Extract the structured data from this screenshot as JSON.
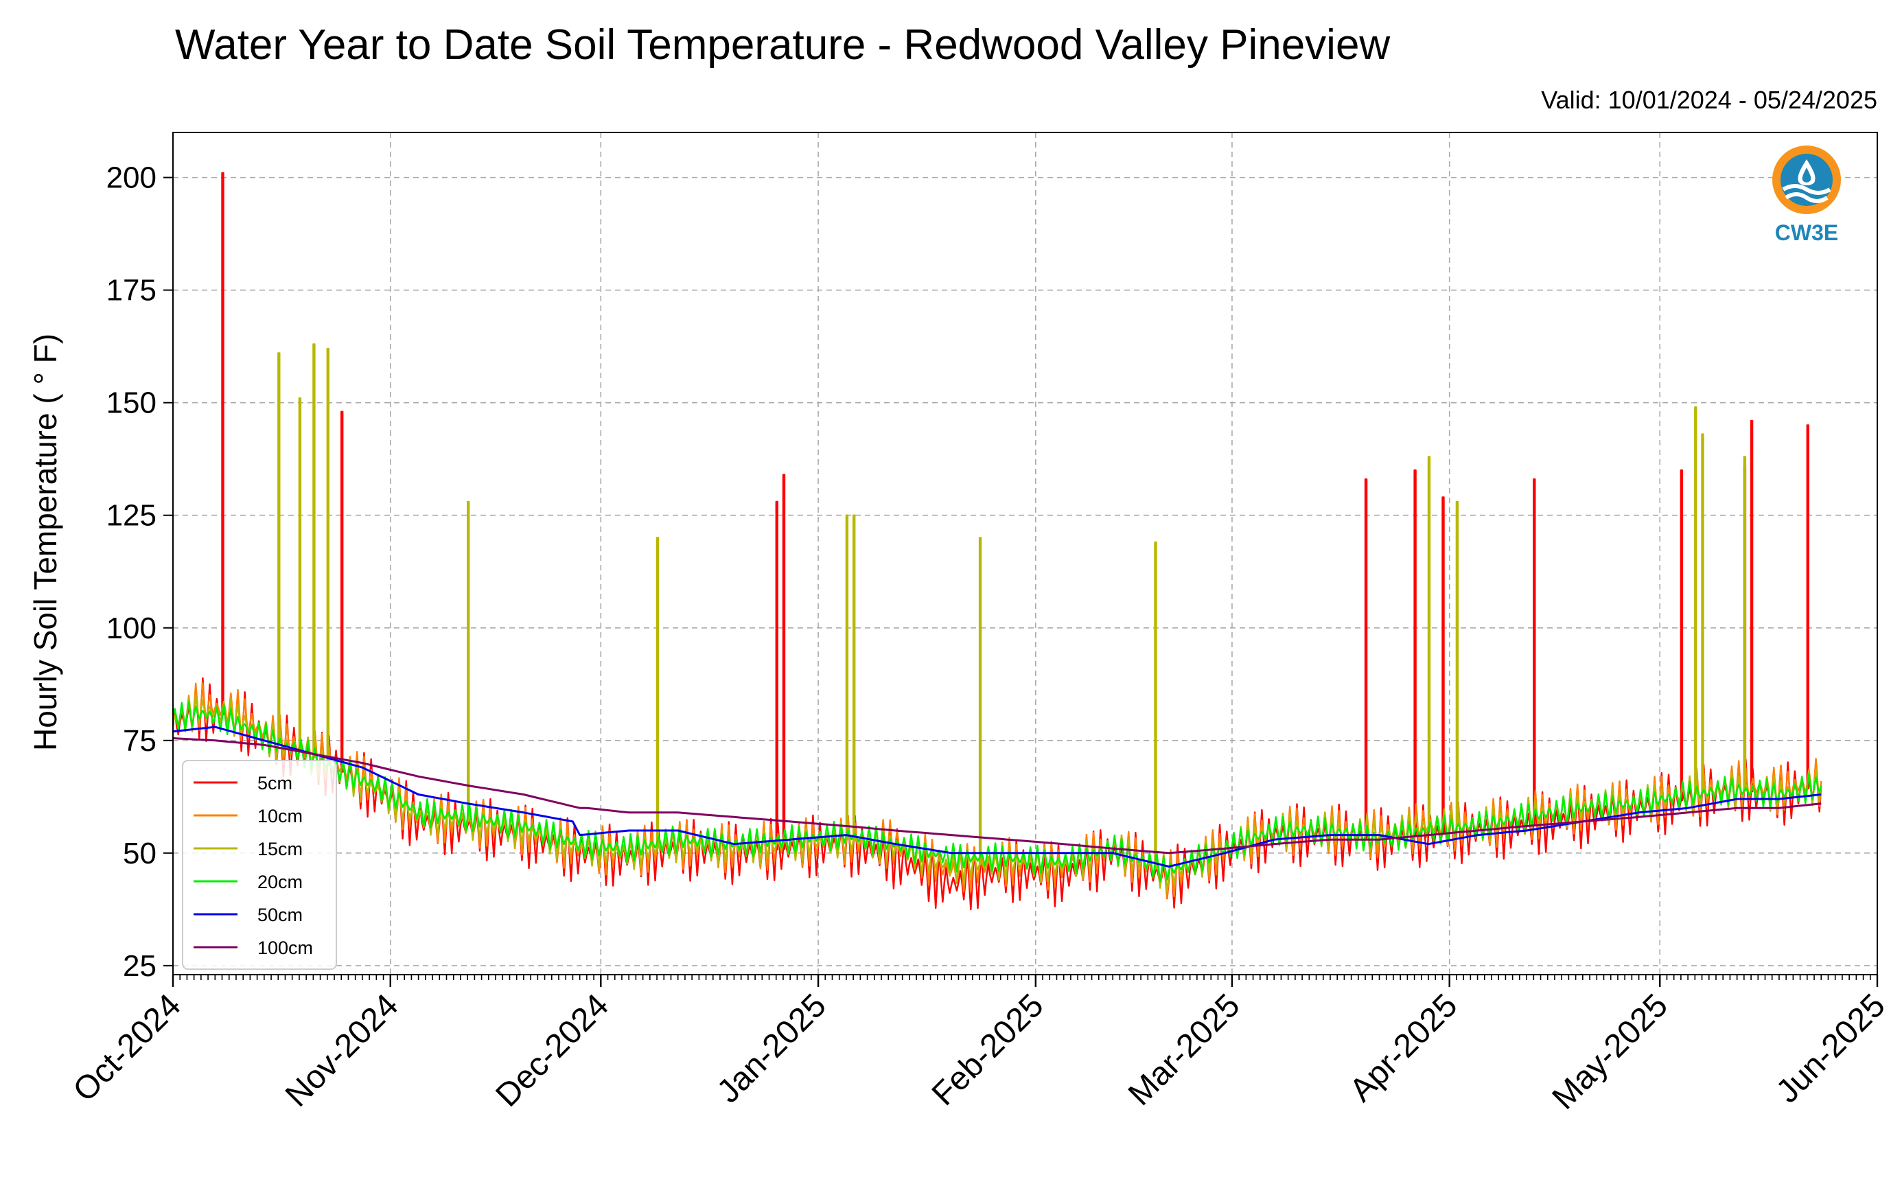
{
  "chart_data": {
    "type": "line",
    "title": "Water Year to Date Soil Temperature - Redwood Valley Pineview",
    "subtitle": "Valid: 10/01/2024 - 05/24/2025",
    "xlabel": "",
    "ylabel": "Hourly Soil Temperature ( ° F)",
    "xlim": [
      "2024-10-01",
      "2025-06-01"
    ],
    "ylim": [
      23,
      210
    ],
    "yticks": [
      25,
      50,
      75,
      100,
      125,
      150,
      175,
      200
    ],
    "ytick_labels": [
      "25",
      "50",
      "75",
      "100",
      "125",
      "150",
      "175",
      "200"
    ],
    "xticks": [
      "2024-10-01",
      "2024-11-01",
      "2024-12-01",
      "2025-01-01",
      "2025-02-01",
      "2025-03-01",
      "2025-04-01",
      "2025-05-01",
      "2025-06-01"
    ],
    "xtick_labels": [
      "Oct-2024",
      "Nov-2024",
      "Dec-2024",
      "Jan-2025",
      "Feb-2025",
      "Mar-2025",
      "Apr-2025",
      "May-2025",
      "Jun-2025"
    ],
    "grid": true,
    "legend_position": "lower-left",
    "series": [
      {
        "name": "5cm",
        "color": "#ff0000",
        "x": [
          "2024-10-01",
          "2024-10-05",
          "2024-10-10",
          "2024-10-15",
          "2024-10-20",
          "2024-10-25",
          "2024-10-30",
          "2024-11-05",
          "2024-11-12",
          "2024-11-20",
          "2024-11-28",
          "2024-12-05",
          "2024-12-12",
          "2024-12-20",
          "2024-12-28",
          "2025-01-05",
          "2025-01-12",
          "2025-01-20",
          "2025-01-28",
          "2025-02-05",
          "2025-02-12",
          "2025-02-20",
          "2025-02-28",
          "2025-03-07",
          "2025-03-15",
          "2025-03-22",
          "2025-03-29",
          "2025-04-05",
          "2025-04-12",
          "2025-04-20",
          "2025-04-28",
          "2025-05-05",
          "2025-05-12",
          "2025-05-18",
          "2025-05-24"
        ],
        "y": [
          78,
          82,
          80,
          75,
          72,
          68,
          64,
          57,
          56,
          54,
          50,
          49,
          51,
          50,
          51,
          52,
          49,
          43,
          46,
          45,
          50,
          44,
          50,
          54,
          54,
          53,
          54,
          55,
          56,
          58,
          60,
          62,
          64,
          63,
          65
        ],
        "spikes": [
          {
            "x": "2024-10-08",
            "y": 201
          },
          {
            "x": "2024-10-25",
            "y": 148
          },
          {
            "x": "2024-12-26",
            "y": 128
          },
          {
            "x": "2024-12-27",
            "y": 134
          },
          {
            "x": "2025-03-20",
            "y": 133
          },
          {
            "x": "2025-03-27",
            "y": 135
          },
          {
            "x": "2025-03-31",
            "y": 129
          },
          {
            "x": "2025-04-13",
            "y": 133
          },
          {
            "x": "2025-05-04",
            "y": 135
          },
          {
            "x": "2025-05-13",
            "y": 136
          },
          {
            "x": "2025-05-14",
            "y": 146
          },
          {
            "x": "2025-05-22",
            "y": 145
          }
        ]
      },
      {
        "name": "10cm",
        "color": "#ff8000",
        "x": [
          "2024-10-01",
          "2024-10-05",
          "2024-10-10",
          "2024-10-15",
          "2024-10-20",
          "2024-10-25",
          "2024-10-30",
          "2024-11-05",
          "2024-11-12",
          "2024-11-20",
          "2024-11-28",
          "2024-12-05",
          "2024-12-12",
          "2024-12-20",
          "2024-12-28",
          "2025-01-05",
          "2025-01-12",
          "2025-01-20",
          "2025-01-28",
          "2025-02-05",
          "2025-02-12",
          "2025-02-20",
          "2025-02-28",
          "2025-03-07",
          "2025-03-15",
          "2025-03-22",
          "2025-03-29",
          "2025-04-05",
          "2025-04-12",
          "2025-04-20",
          "2025-04-28",
          "2025-05-05",
          "2025-05-12",
          "2025-05-18",
          "2025-05-24"
        ],
        "y": [
          79,
          83,
          81,
          76,
          73,
          69,
          65,
          58,
          57,
          55,
          51,
          50,
          52,
          51,
          52,
          53,
          52,
          46,
          48,
          47,
          51,
          45,
          51,
          55,
          55,
          54,
          56,
          56,
          58,
          60,
          61,
          63,
          65,
          64,
          66
        ],
        "spikes": []
      },
      {
        "name": "15cm",
        "color": "#b8b800",
        "x": [
          "2024-10-01",
          "2024-10-05",
          "2024-10-10",
          "2024-10-15",
          "2024-10-20",
          "2024-10-25",
          "2024-10-30",
          "2024-11-05",
          "2024-11-12",
          "2024-11-20",
          "2024-11-28",
          "2024-12-05",
          "2024-12-12",
          "2024-12-20",
          "2024-12-28",
          "2025-01-05",
          "2025-01-12",
          "2025-01-20",
          "2025-01-28",
          "2025-02-05",
          "2025-02-12",
          "2025-02-20",
          "2025-02-28",
          "2025-03-07",
          "2025-03-15",
          "2025-03-22",
          "2025-03-29",
          "2025-04-05",
          "2025-04-12",
          "2025-04-20",
          "2025-04-28",
          "2025-05-05",
          "2025-05-12",
          "2025-05-18",
          "2025-05-24"
        ],
        "y": [
          79,
          82,
          80,
          75,
          72,
          68,
          64,
          58,
          57,
          55,
          51,
          50,
          52,
          51,
          52,
          53,
          51,
          47,
          48,
          47,
          51,
          45,
          51,
          55,
          55,
          54,
          56,
          56,
          58,
          60,
          61,
          63,
          64,
          63,
          65
        ],
        "spikes": [
          {
            "x": "2024-10-16",
            "y": 161
          },
          {
            "x": "2024-10-19",
            "y": 151
          },
          {
            "x": "2024-10-21",
            "y": 163
          },
          {
            "x": "2024-10-23",
            "y": 162
          },
          {
            "x": "2024-11-12",
            "y": 128
          },
          {
            "x": "2024-12-09",
            "y": 120
          },
          {
            "x": "2025-01-05",
            "y": 125
          },
          {
            "x": "2025-01-06",
            "y": 125
          },
          {
            "x": "2025-01-24",
            "y": 120
          },
          {
            "x": "2025-02-18",
            "y": 119
          },
          {
            "x": "2025-03-29",
            "y": 138
          },
          {
            "x": "2025-04-02",
            "y": 128
          },
          {
            "x": "2025-05-06",
            "y": 149
          },
          {
            "x": "2025-05-07",
            "y": 143
          },
          {
            "x": "2025-05-13",
            "y": 138
          }
        ]
      },
      {
        "name": "20cm",
        "color": "#00ee00",
        "x": [
          "2024-10-01",
          "2024-10-05",
          "2024-10-10",
          "2024-10-15",
          "2024-10-20",
          "2024-10-25",
          "2024-10-30",
          "2024-11-05",
          "2024-11-12",
          "2024-11-20",
          "2024-11-28",
          "2024-12-05",
          "2024-12-12",
          "2024-12-20",
          "2024-12-28",
          "2025-01-05",
          "2025-01-12",
          "2025-01-20",
          "2025-01-28",
          "2025-02-05",
          "2025-02-12",
          "2025-02-20",
          "2025-02-28",
          "2025-03-07",
          "2025-03-15",
          "2025-03-22",
          "2025-03-29",
          "2025-04-05",
          "2025-04-12",
          "2025-04-20",
          "2025-04-28",
          "2025-05-05",
          "2025-05-12",
          "2025-05-18",
          "2025-05-24"
        ],
        "y": [
          80,
          81,
          79,
          75,
          72,
          68,
          65,
          59,
          58,
          56,
          52,
          51,
          53,
          52,
          53,
          54,
          52,
          49,
          49,
          48,
          51,
          46,
          51,
          55,
          55,
          53,
          55,
          56,
          58,
          60,
          61,
          63,
          64,
          63,
          65
        ],
        "spikes": []
      },
      {
        "name": "50cm",
        "color": "#0000ee",
        "x": [
          "2024-10-01",
          "2024-10-07",
          "2024-10-14",
          "2024-10-21",
          "2024-10-28",
          "2024-11-05",
          "2024-11-12",
          "2024-11-20",
          "2024-11-27",
          "2024-11-28",
          "2024-12-05",
          "2024-12-12",
          "2024-12-20",
          "2024-12-28",
          "2025-01-05",
          "2025-01-12",
          "2025-01-20",
          "2025-01-28",
          "2025-02-05",
          "2025-02-12",
          "2025-02-20",
          "2025-02-28",
          "2025-03-07",
          "2025-03-15",
          "2025-03-22",
          "2025-03-29",
          "2025-04-05",
          "2025-04-12",
          "2025-04-20",
          "2025-04-28",
          "2025-05-05",
          "2025-05-12",
          "2025-05-18",
          "2025-05-24"
        ],
        "y": [
          77,
          78,
          75,
          72,
          69,
          63,
          61,
          59,
          57,
          54,
          55,
          55,
          52,
          53,
          54,
          52,
          50,
          50,
          50,
          50,
          47,
          50,
          53,
          54,
          54,
          52,
          54,
          55,
          57,
          59,
          60,
          62,
          62,
          63
        ]
      },
      {
        "name": "100cm",
        "color": "#800060",
        "x": [
          "2024-10-01",
          "2024-10-07",
          "2024-10-14",
          "2024-10-21",
          "2024-10-28",
          "2024-11-05",
          "2024-11-12",
          "2024-11-20",
          "2024-11-28",
          "2024-11-29",
          "2024-12-05",
          "2024-12-12",
          "2024-12-20",
          "2024-12-28",
          "2025-01-05",
          "2025-01-12",
          "2025-01-20",
          "2025-01-28",
          "2025-02-05",
          "2025-02-12",
          "2025-02-20",
          "2025-02-28",
          "2025-03-07",
          "2025-03-15",
          "2025-03-22",
          "2025-03-29",
          "2025-04-05",
          "2025-04-12",
          "2025-04-20",
          "2025-04-28",
          "2025-05-05",
          "2025-05-12",
          "2025-05-18",
          "2025-05-24"
        ],
        "y": [
          75.5,
          75,
          74,
          72,
          70,
          67,
          65,
          63,
          60,
          60,
          59,
          59,
          58,
          57,
          56,
          55,
          54,
          53,
          52,
          51,
          50,
          51,
          52,
          53,
          53,
          54,
          55,
          56,
          57,
          58,
          59,
          60,
          60,
          61
        ]
      }
    ]
  },
  "logo": {
    "text": "CW3E",
    "color": "#1e86b8",
    "accent_color": "#f7941d"
  }
}
